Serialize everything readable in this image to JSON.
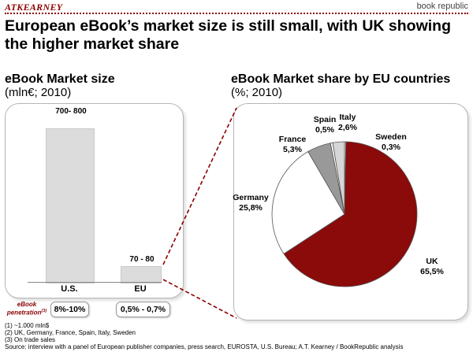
{
  "header": {
    "brand": "ATKEARNEY",
    "partner": "book republic"
  },
  "title": "European eBook’s market size is still small, with UK showing the higher market share",
  "left_panel": {
    "title": "eBook Market size",
    "unit": "(mln€; 2010)",
    "penetration_label": "eBook penetration",
    "penetration_sup": "(3)"
  },
  "right_panel": {
    "title": "eBook Market share by EU countries",
    "unit": "(%; 2010)"
  },
  "chart_data": [
    {
      "type": "bar",
      "title": "eBook Market size",
      "ylabel": "(mln€; 2010)",
      "categories": [
        "U.S.",
        "EU"
      ],
      "values": [
        750,
        75
      ],
      "value_labels": [
        "700- 800",
        "70 - 80"
      ],
      "penetration": [
        "8%-10%",
        "0,5% - 0,7%"
      ],
      "ylim": [
        0,
        800
      ],
      "color": "#dcdcdc"
    },
    {
      "type": "pie",
      "title": "eBook Market share by EU countries",
      "unit": "(%; 2010)",
      "slices": [
        {
          "label": "Sweden",
          "value": 0.3,
          "text": "0,3%",
          "color": "#ffffff"
        },
        {
          "label": "UK",
          "value": 65.5,
          "text": "65,5%",
          "color": "#8b0a0a"
        },
        {
          "label": "Germany",
          "value": 25.8,
          "text": "25,8%",
          "color": "#ffffff"
        },
        {
          "label": "France",
          "value": 5.3,
          "text": "5,3%",
          "color": "#999999"
        },
        {
          "label": "Spain",
          "value": 0.5,
          "text": "0,5%",
          "color": "#ffffff"
        },
        {
          "label": "Italy",
          "value": 2.6,
          "text": "2,6%",
          "color": "#d6d6d6"
        }
      ]
    }
  ],
  "footnotes": [
    "(1) ~1.000 mln$",
    "(2) UK, Germany, France, Spain, Italy, Sweden",
    "(3) On trade sales"
  ],
  "source": "Source: interview with a panel of European publisher companies, press search, EUROSTA, U.S. Bureau; A.T. Kearney / BookRepublic analysis"
}
